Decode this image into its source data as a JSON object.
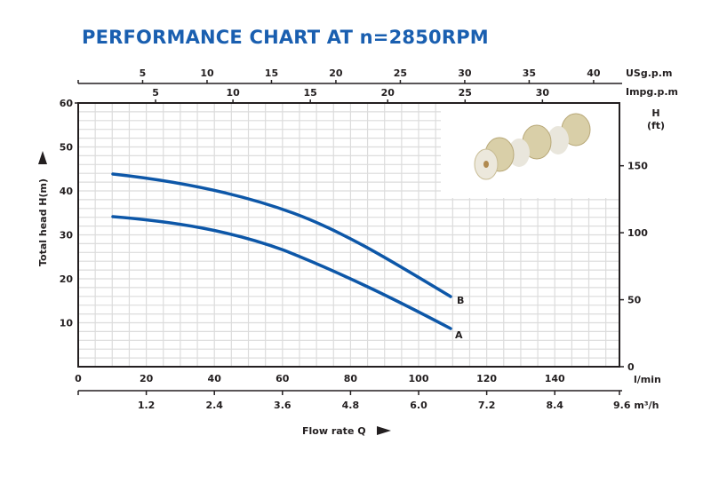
{
  "title": "PERFORMANCE CHART AT n=2850RPM",
  "axes": {
    "usgpm": {
      "label": "USg.p.m",
      "ticks": [
        "5",
        "10",
        "15",
        "20",
        "25",
        "30",
        "35",
        "40"
      ]
    },
    "impgpm": {
      "label": "Impg.p.m",
      "ticks": [
        "5",
        "10",
        "15",
        "20",
        "25",
        "30"
      ]
    },
    "lmin": {
      "label": "l/min",
      "ticks": [
        "0",
        "20",
        "40",
        "60",
        "80",
        "100",
        "120",
        "140"
      ]
    },
    "m3h": {
      "label": "9.6 m³/h",
      "ticks": [
        "1.2",
        "2.4",
        "3.6",
        "4.8",
        "6.0",
        "7.2",
        "8.4"
      ]
    },
    "head_m": {
      "label": "Total  head H(m)",
      "ticks": [
        "60",
        "50",
        "40",
        "30",
        "20",
        "10"
      ]
    },
    "head_ft": {
      "label_h": "H",
      "label_unit": "(ft)",
      "ticks": [
        "150",
        "100",
        "50",
        "0"
      ]
    },
    "flow": {
      "label": "Flow rate Q"
    }
  },
  "curves": {
    "a_label": "A",
    "b_label": "B"
  },
  "colors": {
    "title": "#1a5fb0",
    "curve": "#0d57a8",
    "grid": "#dcdcdc",
    "axis": "#231f20"
  },
  "chart_data": {
    "type": "line",
    "title": "PERFORMANCE CHART AT n=2850RPM",
    "xlabel": "Flow rate Q (l/min)",
    "ylabel": "Total head H(m)",
    "xlim": [
      0,
      160
    ],
    "ylim": [
      0,
      60
    ],
    "secondary_axes": {
      "top_usgpm_ticks": [
        5,
        10,
        15,
        20,
        25,
        30,
        35,
        40
      ],
      "top_impgpm_ticks": [
        5,
        10,
        15,
        20,
        25,
        30
      ],
      "bottom_m3h_ticks": [
        1.2,
        2.4,
        3.6,
        4.8,
        6.0,
        7.2,
        8.4,
        9.6
      ],
      "right_head_ft_ticks": [
        0,
        50,
        100,
        150
      ]
    },
    "grid": true,
    "x": [
      10,
      20,
      40,
      60,
      80,
      100,
      109
    ],
    "series": [
      {
        "name": "B",
        "values": [
          44,
          43,
          40,
          36,
          30,
          21,
          16
        ]
      },
      {
        "name": "A",
        "values": [
          34,
          33.5,
          31,
          27,
          20.5,
          13,
          8.7
        ]
      }
    ]
  }
}
